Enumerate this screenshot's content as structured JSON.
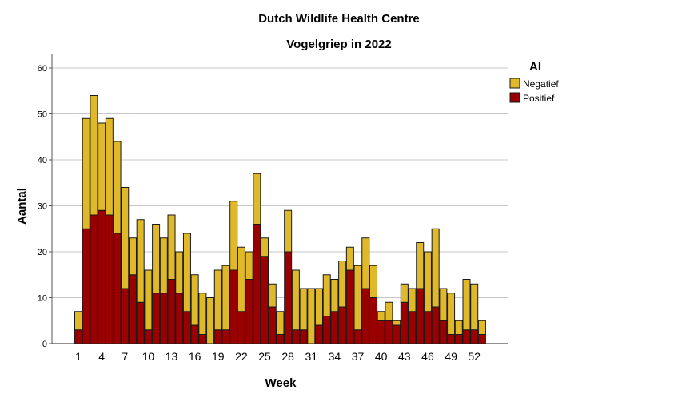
{
  "chart_data": {
    "type": "bar",
    "stacked": true,
    "title": "Dutch Wildlife Health Centre",
    "subtitle": "Vogelgriep in 2022",
    "xlabel": "Week",
    "ylabel": "Aantal",
    "ylim": [
      0,
      63
    ],
    "yticks": [
      0,
      10,
      20,
      30,
      40,
      50,
      60
    ],
    "xtick_labels": [
      "1",
      "4",
      "7",
      "10",
      "13",
      "16",
      "19",
      "22",
      "25",
      "28",
      "31",
      "34",
      "37",
      "40",
      "43",
      "46",
      "49",
      "52"
    ],
    "grid": true,
    "legend": {
      "title": "AI",
      "position": "right"
    },
    "categories": [
      1,
      2,
      3,
      4,
      5,
      6,
      7,
      8,
      9,
      10,
      11,
      12,
      13,
      14,
      15,
      16,
      17,
      18,
      19,
      20,
      21,
      22,
      23,
      24,
      25,
      26,
      27,
      28,
      29,
      30,
      31,
      32,
      33,
      34,
      35,
      36,
      37,
      38,
      39,
      40,
      41,
      42,
      43,
      44,
      45,
      46,
      47,
      48,
      49,
      50,
      51,
      52,
      53
    ],
    "series": [
      {
        "name": "Positief",
        "color": "#9b0000",
        "values": [
          3,
          25,
          28,
          29,
          28,
          24,
          12,
          15,
          9,
          3,
          11,
          11,
          14,
          11,
          7,
          4,
          2,
          0,
          3,
          3,
          16,
          7,
          14,
          26,
          19,
          8,
          2,
          20,
          3,
          3,
          0,
          4,
          6,
          7,
          8,
          16,
          3,
          12,
          10,
          5,
          5,
          4,
          9,
          7,
          12,
          7,
          8,
          5,
          2,
          2,
          3,
          3,
          2
        ]
      },
      {
        "name": "Negatief",
        "color": "#e0b92a",
        "values": [
          4,
          24,
          26,
          19,
          21,
          20,
          22,
          8,
          18,
          13,
          15,
          12,
          14,
          9,
          17,
          11,
          9,
          10,
          13,
          14,
          15,
          14,
          6,
          11,
          4,
          5,
          5,
          9,
          13,
          9,
          12,
          8,
          9,
          7,
          10,
          5,
          14,
          11,
          7,
          2,
          4,
          1,
          4,
          5,
          10,
          13,
          17,
          7,
          9,
          3,
          11,
          10,
          3
        ]
      }
    ]
  }
}
